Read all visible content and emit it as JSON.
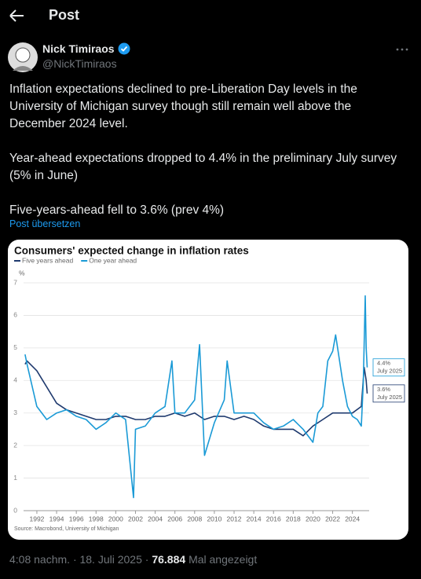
{
  "header": {
    "title": "Post"
  },
  "post": {
    "author": "Nick Timiraos",
    "handle": "@NickTimiraos",
    "paragraphs": [
      "Inflation expectations declined to pre-Liberation Day levels in the University of Michigan survey though still remain well above the December 2024 level.",
      "Year-ahead expectations dropped to 4.4% in the preliminary July survey (5% in June)",
      "Five-years-ahead fell to 3.6% (prev 4%)"
    ],
    "translate": "Post übersetzen",
    "time": "4:08 nachm. · 18. Juli 2025",
    "separator": "·",
    "views": "76.884",
    "views_label": "Mal angezeigt"
  },
  "chart_data": {
    "type": "line",
    "title": "Consumers' expected change in inflation rates",
    "y_label": "%",
    "source": "Source: Macrobond, University of Michigan",
    "xlim": [
      1990.65,
      2025.7
    ],
    "ylim": [
      0,
      7
    ],
    "yticks": [
      0,
      1,
      2,
      3,
      4,
      5,
      6,
      7
    ],
    "xticks": [
      1992,
      1994,
      1996,
      1998,
      2000,
      2002,
      2004,
      2006,
      2008,
      2010,
      2012,
      2014,
      2016,
      2018,
      2020,
      2022,
      2024
    ],
    "grid": true,
    "series": [
      {
        "name": "Five years ahead",
        "color": "#1f3a6e",
        "x": [
          1990.8,
          1991,
          1992,
          1993,
          1994,
          1995,
          1996,
          1997,
          1998,
          1999,
          2000,
          2001,
          2002,
          2003,
          2004,
          2005,
          2006,
          2007,
          2008,
          2009,
          2010,
          2011,
          2012,
          2013,
          2014,
          2015,
          2016,
          2017,
          2018,
          2019,
          2020,
          2021,
          2022,
          2023,
          2024,
          2024.9,
          2025.2,
          2025.4,
          2025.5
        ],
        "values": [
          4.5,
          4.6,
          4.3,
          3.8,
          3.3,
          3.1,
          3.0,
          2.9,
          2.8,
          2.8,
          2.9,
          2.9,
          2.8,
          2.8,
          2.9,
          2.9,
          3.0,
          2.9,
          3.0,
          2.8,
          2.9,
          2.9,
          2.8,
          2.9,
          2.8,
          2.6,
          2.5,
          2.5,
          2.5,
          2.3,
          2.6,
          2.8,
          3.0,
          3.0,
          3.0,
          3.2,
          4.4,
          4.0,
          3.6
        ]
      },
      {
        "name": "One year ahead",
        "color": "#1a9ad6",
        "x": [
          1990.8,
          1991,
          1992,
          1993,
          1994,
          1995,
          1996,
          1997,
          1998,
          1999,
          2000,
          2001,
          2001.8,
          2002,
          2003,
          2004,
          2005,
          2005.7,
          2006,
          2007,
          2008,
          2008.5,
          2009,
          2010,
          2011,
          2011.3,
          2012,
          2013,
          2014,
          2015,
          2016,
          2017,
          2018,
          2019,
          2020,
          2020.5,
          2021,
          2021.5,
          2022,
          2022.3,
          2023,
          2023.5,
          2024,
          2024.5,
          2024.9,
          2025.1,
          2025.3,
          2025.4,
          2025.5
        ],
        "values": [
          4.8,
          4.5,
          3.2,
          2.8,
          3.0,
          3.1,
          2.9,
          2.8,
          2.5,
          2.7,
          3.0,
          2.8,
          0.4,
          2.5,
          2.6,
          3.0,
          3.2,
          4.6,
          3.0,
          3.0,
          3.4,
          5.1,
          1.7,
          2.7,
          3.4,
          4.6,
          3.0,
          3.0,
          3.0,
          2.7,
          2.5,
          2.6,
          2.8,
          2.5,
          2.1,
          3.0,
          3.2,
          4.6,
          4.9,
          5.4,
          4.0,
          3.2,
          2.9,
          2.8,
          2.6,
          3.9,
          6.6,
          5.0,
          4.4
        ]
      }
    ],
    "annotations": [
      {
        "value": 4.4,
        "label": "4.4%",
        "date": "July 2025",
        "color": "#1a9ad6"
      },
      {
        "value": 3.6,
        "label": "3.6%",
        "date": "July 2025",
        "color": "#1f3a6e"
      }
    ]
  }
}
